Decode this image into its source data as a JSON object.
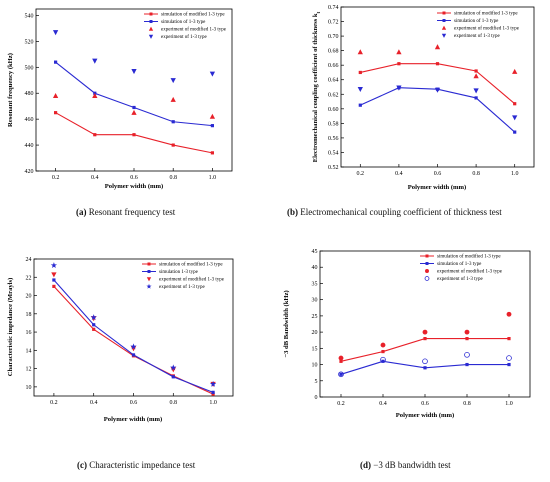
{
  "chart_data": [
    {
      "id": "a",
      "type": "line",
      "panel_label": "(a)",
      "caption": "Resonant frequency test",
      "xlabel": "Polymer width (mm)",
      "ylabel": "Resonant frequency (kHz)",
      "ylabel_subscript": "",
      "xlim": [
        0.1,
        1.1
      ],
      "ylim": [
        420,
        545
      ],
      "xticks": [
        "0.2",
        "0.4",
        "0.6",
        "0.8",
        "1.0"
      ],
      "yticks": [
        "420",
        "440",
        "460",
        "480",
        "500",
        "520",
        "540"
      ],
      "legend_position": "top-right",
      "series": [
        {
          "name": "simulation of modified 1-3 type",
          "kind": "line",
          "marker": "square",
          "color": "#e8212a",
          "x": [
            0.2,
            0.4,
            0.6,
            0.8,
            1.0
          ],
          "y": [
            465,
            448,
            448,
            440,
            434
          ]
        },
        {
          "name": "simulation of 1-3 type",
          "kind": "line",
          "marker": "square",
          "color": "#2a2ad2",
          "x": [
            0.2,
            0.4,
            0.6,
            0.8,
            1.0
          ],
          "y": [
            504,
            480,
            469,
            458,
            455
          ]
        },
        {
          "name": "experiment of modified 1-3 type",
          "kind": "scatter",
          "marker": "triangle-up",
          "color": "#e8212a",
          "x": [
            0.2,
            0.4,
            0.6,
            0.8,
            1.0
          ],
          "y": [
            478,
            478,
            465,
            475,
            462
          ]
        },
        {
          "name": "experiment of 1-3 type",
          "kind": "scatter",
          "marker": "triangle-down",
          "color": "#2a2ad2",
          "x": [
            0.2,
            0.4,
            0.6,
            0.8,
            1.0
          ],
          "y": [
            527,
            505,
            497,
            490,
            495
          ]
        }
      ]
    },
    {
      "id": "b",
      "type": "line",
      "panel_label": "(b)",
      "caption": "Electromechanical coupling coefficient of thickness test",
      "xlabel": "Polymer width (mm)",
      "ylabel": "Electromechanical coupling coefficient of thickness k",
      "ylabel_subscript": "t",
      "xlim": [
        0.1,
        1.1
      ],
      "ylim": [
        0.52,
        0.74
      ],
      "xticks": [
        "0.2",
        "0.4",
        "0.6",
        "0.8",
        "1.0"
      ],
      "yticks": [
        "0.52",
        "0.54",
        "0.56",
        "0.58",
        "0.60",
        "0.62",
        "0.64",
        "0.66",
        "0.68",
        "0.70",
        "0.72",
        "0.74"
      ],
      "legend_position": "top-right",
      "series": [
        {
          "name": "simulation of modified 1-3 type",
          "kind": "line",
          "marker": "square",
          "color": "#e8212a",
          "x": [
            0.2,
            0.4,
            0.6,
            0.8,
            1.0
          ],
          "y": [
            0.65,
            0.662,
            0.662,
            0.652,
            0.607
          ]
        },
        {
          "name": "simulation of 1-3 type",
          "kind": "line",
          "marker": "square",
          "color": "#2a2ad2",
          "x": [
            0.2,
            0.4,
            0.6,
            0.8,
            1.0
          ],
          "y": [
            0.605,
            0.629,
            0.627,
            0.615,
            0.568
          ]
        },
        {
          "name": "experiment of modified 1-3 type",
          "kind": "scatter",
          "marker": "triangle-up",
          "color": "#e8212a",
          "x": [
            0.2,
            0.4,
            0.6,
            0.8,
            1.0
          ],
          "y": [
            0.678,
            0.678,
            0.685,
            0.645,
            0.651
          ]
        },
        {
          "name": "experiment of 1-3 type",
          "kind": "scatter",
          "marker": "triangle-down",
          "color": "#2a2ad2",
          "x": [
            0.2,
            0.4,
            0.6,
            0.8,
            1.0
          ],
          "y": [
            0.627,
            0.629,
            0.626,
            0.625,
            0.588
          ]
        }
      ]
    },
    {
      "id": "c",
      "type": "line",
      "panel_label": "(c)",
      "caption": "Characteristic impedance test",
      "xlabel": "Polymer width (mm)",
      "ylabel": "Characteristic impedance (Mrayls)",
      "ylabel_subscript": "",
      "xlim": [
        0.1,
        1.1
      ],
      "ylim": [
        9,
        24
      ],
      "xticks": [
        "0.2",
        "0.4",
        "0.6",
        "0.8",
        "1.0"
      ],
      "yticks": [
        "10",
        "12",
        "14",
        "16",
        "18",
        "20",
        "22",
        "24"
      ],
      "legend_position": "top-right",
      "series": [
        {
          "name": "simulation of modified 1-3 type",
          "kind": "line",
          "marker": "square",
          "color": "#e8212a",
          "x": [
            0.2,
            0.4,
            0.6,
            0.8,
            1.0
          ],
          "y": [
            21.0,
            16.3,
            13.4,
            11.2,
            9.2
          ]
        },
        {
          "name": "simulation 1-3 type",
          "kind": "line",
          "marker": "square",
          "color": "#2a2ad2",
          "x": [
            0.2,
            0.4,
            0.6,
            0.8,
            1.0
          ],
          "y": [
            21.7,
            16.8,
            13.5,
            11.1,
            9.4
          ]
        },
        {
          "name": "experiment of modified 1-3 type",
          "kind": "scatter",
          "marker": "triangle-down",
          "color": "#e8212a",
          "x": [
            0.2,
            0.4,
            0.6,
            0.8,
            1.0
          ],
          "y": [
            22.3,
            17.5,
            14.2,
            11.9,
            10.3
          ]
        },
        {
          "name": "experiment of 1-3 type",
          "kind": "scatter",
          "marker": "star",
          "color": "#2a2ad2",
          "x": [
            0.2,
            0.4,
            0.6,
            0.8,
            1.0
          ],
          "y": [
            23.3,
            17.6,
            14.4,
            12.1,
            10.3
          ]
        }
      ]
    },
    {
      "id": "d",
      "type": "line",
      "panel_label": "(d)",
      "caption": "−3 dB bandwidth test",
      "xlabel": "Polymer width (mm)",
      "ylabel": "−3 dB Bandwidth (kHz)",
      "ylabel_subscript": "",
      "xlim": [
        0.1,
        1.1
      ],
      "ylim": [
        0,
        45
      ],
      "xticks": [
        "0.2",
        "0.4",
        "0.6",
        "0.8",
        "1.0"
      ],
      "yticks": [
        "0",
        "5",
        "10",
        "15",
        "20",
        "25",
        "30",
        "35",
        "40",
        "45"
      ],
      "legend_position": "top-right",
      "series": [
        {
          "name": "simulation of modified 1-3 type",
          "kind": "line",
          "marker": "square",
          "color": "#e8212a",
          "x": [
            0.2,
            0.4,
            0.6,
            0.8,
            1.0
          ],
          "y": [
            11,
            14,
            18,
            18,
            18
          ]
        },
        {
          "name": "simulation of 1-3 type",
          "kind": "line",
          "marker": "square",
          "color": "#2a2ad2",
          "x": [
            0.2,
            0.4,
            0.6,
            0.8,
            1.0
          ],
          "y": [
            7,
            11,
            9,
            10,
            10
          ]
        },
        {
          "name": "experiment of modified 1-3 type",
          "kind": "scatter",
          "marker": "circle",
          "color": "#e8212a",
          "x": [
            0.2,
            0.4,
            0.6,
            0.8,
            1.0
          ],
          "y": [
            12,
            16,
            20,
            20,
            25.5
          ]
        },
        {
          "name": "experiment of 1-3 type",
          "kind": "scatter",
          "marker": "circle-open",
          "color": "#2a2ad2",
          "x": [
            0.2,
            0.4,
            0.6,
            0.8,
            1.0
          ],
          "y": [
            7,
            11.5,
            11,
            13,
            12
          ]
        }
      ]
    }
  ]
}
